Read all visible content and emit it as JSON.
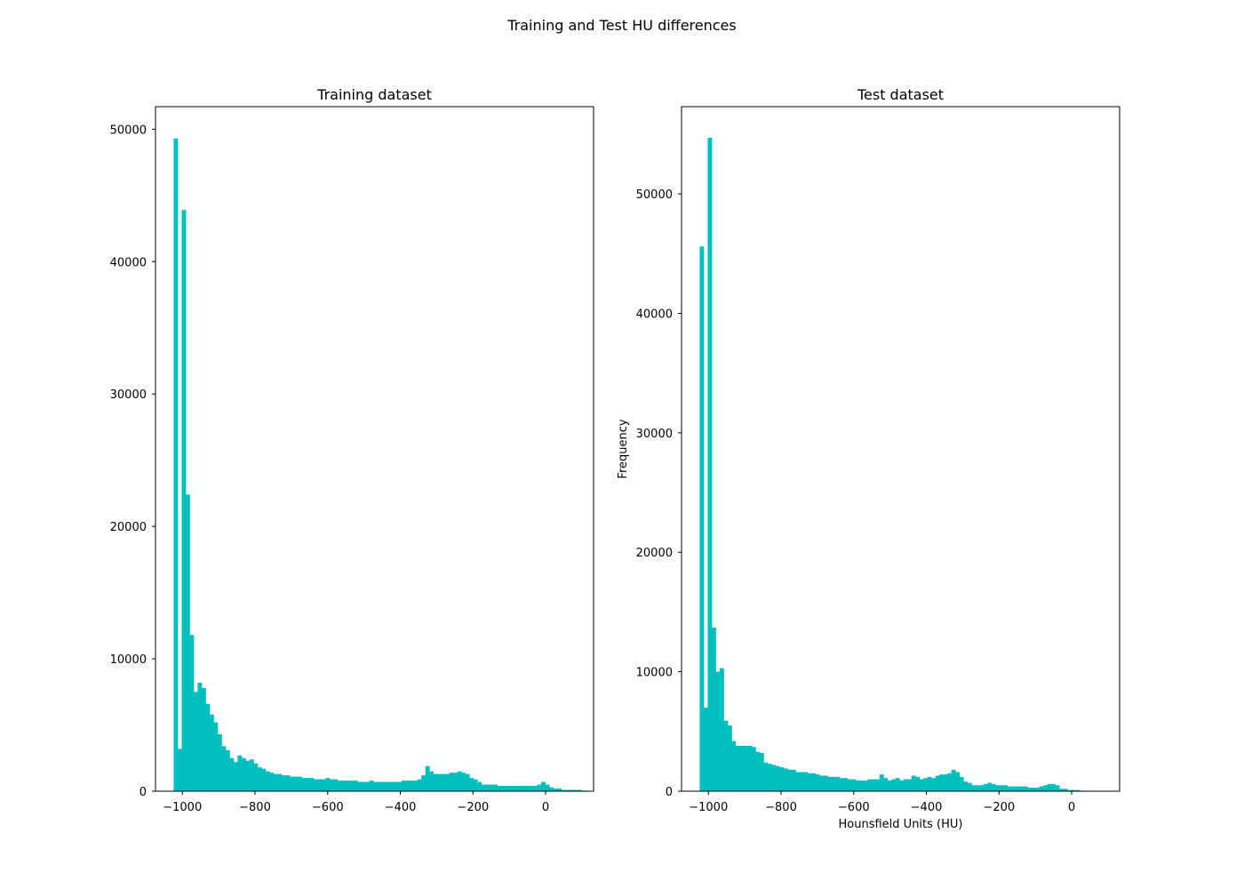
{
  "figure": {
    "suptitle": "Training and Test HU differences",
    "bar_color": "#00BFBF"
  },
  "chart_data": [
    {
      "type": "bar",
      "title": "Training dataset",
      "xlabel": "",
      "ylabel": "",
      "xlim": [
        -1074,
        132
      ],
      "ylim": [
        0,
        51700
      ],
      "xticks": [
        -1000,
        -800,
        -600,
        -400,
        -200,
        0
      ],
      "xtick_labels": [
        "−1000",
        "−800",
        "−600",
        "−400",
        "−200",
        "0"
      ],
      "yticks": [
        0,
        10000,
        20000,
        30000,
        40000,
        50000
      ],
      "ytick_labels": [
        "0",
        "10000",
        "20000",
        "30000",
        "40000",
        "50000"
      ],
      "bin_start": -1024,
      "bin_width": 11,
      "values": [
        49300,
        3200,
        43900,
        22400,
        11800,
        7500,
        8200,
        7800,
        6600,
        5800,
        5200,
        4300,
        3400,
        3100,
        2500,
        2200,
        2700,
        2500,
        2300,
        2400,
        2100,
        1800,
        1700,
        1500,
        1400,
        1300,
        1300,
        1200,
        1200,
        1100,
        1100,
        1100,
        1000,
        1000,
        1000,
        900,
        900,
        900,
        1000,
        900,
        900,
        800,
        800,
        800,
        800,
        800,
        700,
        700,
        700,
        800,
        700,
        700,
        700,
        700,
        700,
        700,
        700,
        800,
        800,
        800,
        800,
        900,
        1200,
        1900,
        1500,
        1300,
        1300,
        1300,
        1300,
        1400,
        1400,
        1500,
        1400,
        1300,
        1000,
        900,
        700,
        500,
        500,
        500,
        500,
        400,
        400,
        400,
        400,
        400,
        400,
        400,
        400,
        400,
        400,
        500,
        700,
        500,
        300,
        200,
        200,
        100,
        100,
        100,
        100,
        100,
        50
      ]
    },
    {
      "type": "bar",
      "title": "Test dataset",
      "xlabel": "Hounsfield Units (HU)",
      "ylabel": "Frequency",
      "xlim": [
        -1074,
        132
      ],
      "ylim": [
        0,
        57300
      ],
      "xticks": [
        -1000,
        -800,
        -600,
        -400,
        -200,
        0
      ],
      "xtick_labels": [
        "−1000",
        "−800",
        "−600",
        "−400",
        "−200",
        "0"
      ],
      "yticks": [
        0,
        10000,
        20000,
        30000,
        40000,
        50000
      ],
      "ytick_labels": [
        "0",
        "10000",
        "20000",
        "30000",
        "40000",
        "50000"
      ],
      "bin_start": -1024,
      "bin_width": 11,
      "values": [
        45600,
        7000,
        54700,
        13700,
        10000,
        10300,
        5900,
        5500,
        4200,
        3800,
        3800,
        3800,
        3800,
        3700,
        3300,
        3200,
        2400,
        2300,
        2200,
        2100,
        2000,
        1900,
        1800,
        1800,
        1600,
        1600,
        1600,
        1500,
        1500,
        1400,
        1300,
        1300,
        1200,
        1200,
        1200,
        1100,
        1100,
        1000,
        1000,
        900,
        900,
        900,
        1000,
        1000,
        1000,
        1400,
        1100,
        900,
        1000,
        1100,
        900,
        1000,
        1000,
        1300,
        1200,
        1000,
        1100,
        1200,
        1100,
        1300,
        1400,
        1400,
        1500,
        1800,
        1600,
        1200,
        800,
        700,
        500,
        500,
        500,
        600,
        700,
        600,
        500,
        500,
        500,
        400,
        400,
        400,
        400,
        400,
        300,
        300,
        300,
        400,
        500,
        600,
        600,
        500,
        200,
        200,
        100,
        100,
        100,
        50
      ]
    }
  ]
}
